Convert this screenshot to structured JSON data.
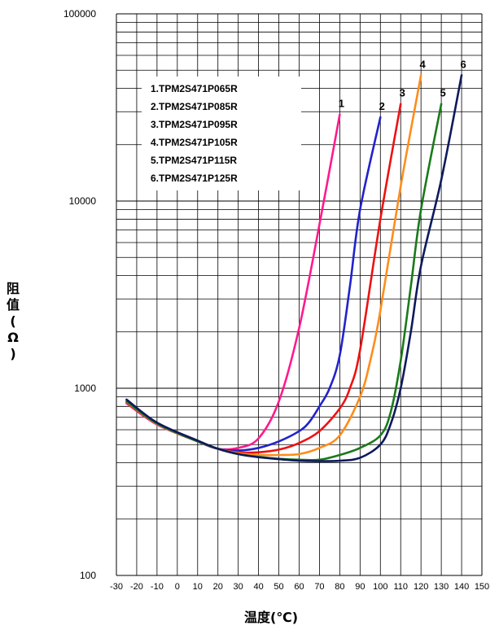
{
  "chart_data": {
    "type": "line",
    "xlabel": "温度(℃)",
    "ylabel": "阻值 (Ω)",
    "y_scale": "log",
    "ylim": [
      100,
      100000
    ],
    "xlim": [
      -30,
      150
    ],
    "x_ticks": [
      -30,
      -20,
      -10,
      0,
      10,
      20,
      30,
      40,
      50,
      60,
      70,
      80,
      90,
      100,
      110,
      120,
      130,
      140,
      150
    ],
    "x_tick_labels": [
      "-30",
      "-20",
      "-10",
      "0",
      "10",
      "20",
      "30",
      "40",
      "50",
      "60",
      "70",
      "80",
      "90",
      "100",
      "110",
      "120",
      "130",
      "140",
      "150"
    ],
    "y_ticks": [
      100,
      1000,
      10000,
      100000
    ],
    "y_tick_labels": [
      "100",
      "1000",
      "10000",
      "100000"
    ],
    "grid": true,
    "legend_position": "top-left",
    "legend": [
      "1.TPM2S471P065R",
      "2.TPM2S471P085R",
      "3.TPM2S471P095R",
      "4.TPM2S471P105R",
      "5.TPM2S471P115R",
      "6.TPM2S471P125R"
    ],
    "series": [
      {
        "label": "1",
        "color": "#ff1a8c",
        "points": [
          [
            -25,
            830
          ],
          [
            -10,
            640
          ],
          [
            10,
            520
          ],
          [
            20,
            475
          ],
          [
            30,
            480
          ],
          [
            40,
            540
          ],
          [
            50,
            850
          ],
          [
            60,
            2100
          ],
          [
            70,
            7500
          ],
          [
            80,
            29000
          ]
        ]
      },
      {
        "label": "2",
        "color": "#2222cc",
        "points": [
          [
            -25,
            850
          ],
          [
            -10,
            650
          ],
          [
            10,
            520
          ],
          [
            20,
            475
          ],
          [
            30,
            465
          ],
          [
            40,
            480
          ],
          [
            50,
            520
          ],
          [
            60,
            590
          ],
          [
            65,
            660
          ],
          [
            70,
            800
          ],
          [
            75,
            1000
          ],
          [
            80,
            1500
          ],
          [
            85,
            3500
          ],
          [
            90,
            9000
          ],
          [
            100,
            28000
          ]
        ]
      },
      {
        "label": "3",
        "color": "#ee1111",
        "points": [
          [
            -25,
            840
          ],
          [
            -10,
            645
          ],
          [
            10,
            520
          ],
          [
            20,
            475
          ],
          [
            30,
            455
          ],
          [
            40,
            455
          ],
          [
            50,
            470
          ],
          [
            60,
            510
          ],
          [
            70,
            590
          ],
          [
            80,
            780
          ],
          [
            85,
            1000
          ],
          [
            90,
            1600
          ],
          [
            100,
            8000
          ],
          [
            110,
            33000
          ]
        ]
      },
      {
        "label": "4",
        "color": "#ff8c1a",
        "points": [
          [
            -25,
            845
          ],
          [
            -10,
            645
          ],
          [
            10,
            520
          ],
          [
            20,
            475
          ],
          [
            30,
            450
          ],
          [
            40,
            440
          ],
          [
            50,
            440
          ],
          [
            60,
            445
          ],
          [
            70,
            480
          ],
          [
            80,
            560
          ],
          [
            90,
            900
          ],
          [
            95,
            1400
          ],
          [
            100,
            2600
          ],
          [
            110,
            12000
          ],
          [
            120,
            47000
          ]
        ]
      },
      {
        "label": "5",
        "color": "#1a7a1a",
        "points": [
          [
            -25,
            850
          ],
          [
            -10,
            648
          ],
          [
            10,
            520
          ],
          [
            20,
            475
          ],
          [
            30,
            445
          ],
          [
            40,
            430
          ],
          [
            50,
            420
          ],
          [
            60,
            415
          ],
          [
            70,
            415
          ],
          [
            80,
            440
          ],
          [
            90,
            480
          ],
          [
            100,
            560
          ],
          [
            105,
            740
          ],
          [
            110,
            1400
          ],
          [
            115,
            3500
          ],
          [
            120,
            9000
          ],
          [
            130,
            33000
          ]
        ]
      },
      {
        "label": "6",
        "color": "#0d1a5c",
        "points": [
          [
            -25,
            870
          ],
          [
            -10,
            655
          ],
          [
            10,
            525
          ],
          [
            20,
            475
          ],
          [
            30,
            445
          ],
          [
            40,
            428
          ],
          [
            50,
            418
          ],
          [
            60,
            410
          ],
          [
            70,
            408
          ],
          [
            80,
            410
          ],
          [
            90,
            425
          ],
          [
            100,
            500
          ],
          [
            105,
            640
          ],
          [
            110,
            1000
          ],
          [
            115,
            2000
          ],
          [
            120,
            4500
          ],
          [
            130,
            13000
          ],
          [
            140,
            47000
          ]
        ]
      }
    ]
  }
}
